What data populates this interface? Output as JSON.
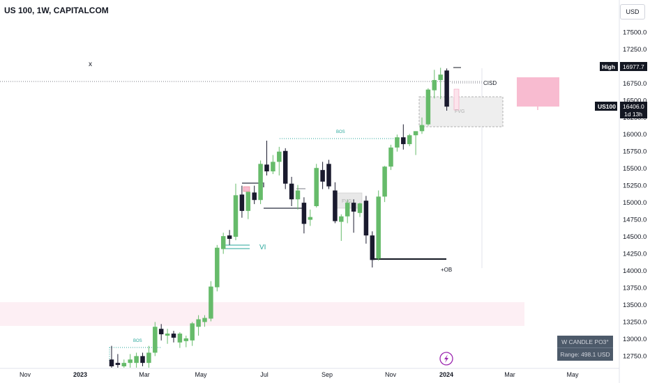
{
  "header": {
    "title": "US 100, 1W, CAPITALCOM"
  },
  "currency_button": "USD",
  "price_tags": {
    "high_label": "High",
    "high_value": "16977.7",
    "symbol_label": "US100",
    "symbol_value": "16406.0",
    "countdown": "1d 13h"
  },
  "annotations": {
    "x_mark": "x",
    "bos_top": "BOS",
    "bos_bottom": "BOS",
    "fvg_top": "FVG",
    "fvg_mid": "FVG",
    "vi": "VI",
    "cisd": "CISD",
    "ob": "+OB"
  },
  "indicator_box": {
    "line1": "W CANDLE PO3°",
    "line2": "Range: 498.1 USD"
  },
  "colors": {
    "up": "#66bb6a",
    "down": "#1a1a2e",
    "accent_green": "#26a69a",
    "pink_zone": "#f8bbd0",
    "price_tag_dark": "#131722"
  },
  "icons": {
    "replay": "lightning-icon"
  },
  "chart_data": {
    "type": "candlestick",
    "title": "US 100, 1W, CAPITALCOM",
    "y_ticks": [
      "17500.0",
      "17250.0",
      "17000.0",
      "16750.0",
      "16500.0",
      "16250.0",
      "16000.0",
      "15750.0",
      "15500.0",
      "15250.0",
      "15000.0",
      "14750.0",
      "14500.0",
      "14250.0",
      "14000.0",
      "13750.0",
      "13500.0",
      "13250.0",
      "13000.0",
      "12750.0"
    ],
    "y_values": [
      17500,
      17250,
      17000,
      16750,
      16500,
      16250,
      16000,
      15750,
      15500,
      15250,
      15000,
      14750,
      14500,
      14250,
      14000,
      13750,
      13500,
      13250,
      13000,
      12750
    ],
    "x_ticks": [
      "Nov",
      "2023",
      "Mar",
      "May",
      "Jul",
      "Sep",
      "Nov",
      "2024",
      "Mar",
      "May"
    ],
    "ylim": [
      12580,
      17770
    ],
    "candles": [
      {
        "o": 12700,
        "h": 12900,
        "l": 12580,
        "c": 12600
      },
      {
        "o": 12650,
        "h": 12780,
        "l": 12580,
        "c": 12620
      },
      {
        "o": 12600,
        "h": 12700,
        "l": 12580,
        "c": 12650
      },
      {
        "o": 12650,
        "h": 12780,
        "l": 12580,
        "c": 12700
      },
      {
        "o": 12650,
        "h": 12800,
        "l": 12580,
        "c": 12750
      },
      {
        "o": 12750,
        "h": 12800,
        "l": 12600,
        "c": 12650
      },
      {
        "o": 12650,
        "h": 12900,
        "l": 12580,
        "c": 12800
      },
      {
        "o": 12800,
        "h": 13250,
        "l": 12750,
        "c": 13180
      },
      {
        "o": 13150,
        "h": 13220,
        "l": 12980,
        "c": 13070
      },
      {
        "o": 13050,
        "h": 13150,
        "l": 12930,
        "c": 13080
      },
      {
        "o": 13080,
        "h": 13120,
        "l": 12950,
        "c": 13020
      },
      {
        "o": 12950,
        "h": 13100,
        "l": 12870,
        "c": 13080
      },
      {
        "o": 12970,
        "h": 13050,
        "l": 12880,
        "c": 13010
      },
      {
        "o": 12980,
        "h": 13250,
        "l": 12900,
        "c": 13230
      },
      {
        "o": 13180,
        "h": 13350,
        "l": 13050,
        "c": 13290
      },
      {
        "o": 13250,
        "h": 13350,
        "l": 13180,
        "c": 13310
      },
      {
        "o": 13300,
        "h": 13850,
        "l": 13260,
        "c": 13770
      },
      {
        "o": 13760,
        "h": 14380,
        "l": 13700,
        "c": 14340
      },
      {
        "o": 14320,
        "h": 14560,
        "l": 14250,
        "c": 14510
      },
      {
        "o": 14520,
        "h": 14600,
        "l": 14380,
        "c": 14470
      },
      {
        "o": 14500,
        "h": 15280,
        "l": 14450,
        "c": 15110
      },
      {
        "o": 15120,
        "h": 15250,
        "l": 14780,
        "c": 14880
      },
      {
        "o": 14880,
        "h": 15150,
        "l": 14760,
        "c": 15160
      },
      {
        "o": 15150,
        "h": 15250,
        "l": 14980,
        "c": 15040
      },
      {
        "o": 15040,
        "h": 15620,
        "l": 14980,
        "c": 15570
      },
      {
        "o": 15560,
        "h": 15910,
        "l": 15400,
        "c": 15460
      },
      {
        "o": 15460,
        "h": 15700,
        "l": 15420,
        "c": 15600
      },
      {
        "o": 15600,
        "h": 15820,
        "l": 15400,
        "c": 15750
      },
      {
        "o": 15760,
        "h": 15800,
        "l": 15200,
        "c": 15280
      },
      {
        "o": 15280,
        "h": 15380,
        "l": 14950,
        "c": 15050
      },
      {
        "o": 15050,
        "h": 15260,
        "l": 14900,
        "c": 15180
      },
      {
        "o": 15000,
        "h": 15080,
        "l": 14550,
        "c": 14690
      },
      {
        "o": 14750,
        "h": 14900,
        "l": 14660,
        "c": 14790
      },
      {
        "o": 14950,
        "h": 15570,
        "l": 14930,
        "c": 15510
      },
      {
        "o": 15480,
        "h": 15600,
        "l": 15200,
        "c": 15310
      },
      {
        "o": 15570,
        "h": 15630,
        "l": 15200,
        "c": 15240
      },
      {
        "o": 15180,
        "h": 15300,
        "l": 14700,
        "c": 14730
      },
      {
        "o": 14720,
        "h": 14830,
        "l": 14440,
        "c": 14800
      },
      {
        "o": 14800,
        "h": 15050,
        "l": 14700,
        "c": 15000
      },
      {
        "o": 15000,
        "h": 15050,
        "l": 14560,
        "c": 14870
      },
      {
        "o": 14850,
        "h": 15000,
        "l": 14790,
        "c": 14990
      },
      {
        "o": 15030,
        "h": 15100,
        "l": 14400,
        "c": 14520
      },
      {
        "o": 14520,
        "h": 14580,
        "l": 14050,
        "c": 14160
      },
      {
        "o": 14180,
        "h": 15180,
        "l": 14150,
        "c": 15090
      },
      {
        "o": 15090,
        "h": 15540,
        "l": 15010,
        "c": 15530
      },
      {
        "o": 15530,
        "h": 15850,
        "l": 15480,
        "c": 15810
      },
      {
        "o": 15810,
        "h": 16000,
        "l": 15750,
        "c": 15960
      },
      {
        "o": 15960,
        "h": 16150,
        "l": 15780,
        "c": 15860
      },
      {
        "o": 15860,
        "h": 16010,
        "l": 15830,
        "c": 15990
      },
      {
        "o": 15990,
        "h": 16050,
        "l": 15700,
        "c": 16050
      },
      {
        "o": 16050,
        "h": 16250,
        "l": 16010,
        "c": 16140
      },
      {
        "o": 16150,
        "h": 16680,
        "l": 16130,
        "c": 16660
      },
      {
        "o": 16650,
        "h": 16950,
        "l": 16530,
        "c": 16800
      },
      {
        "o": 16800,
        "h": 16980,
        "l": 16520,
        "c": 16880
      },
      {
        "o": 16940,
        "h": 16970,
        "l": 16350,
        "c": 16410
      }
    ],
    "levels": {
      "high": 16977.7,
      "last": 16406.0
    }
  }
}
